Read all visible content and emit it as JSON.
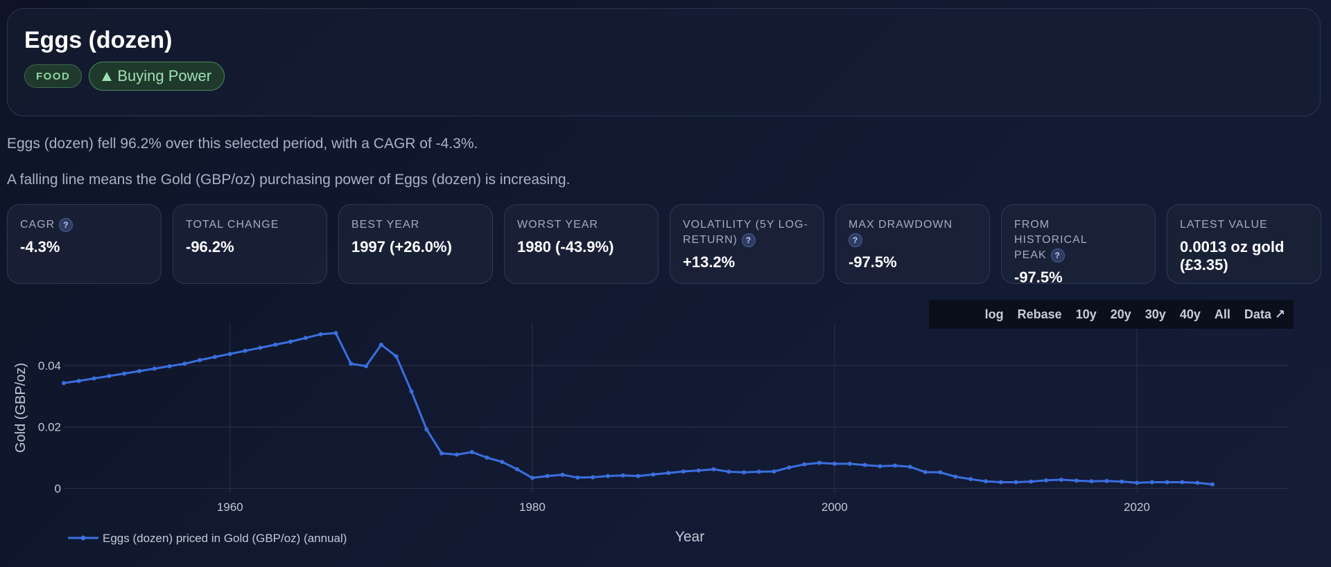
{
  "header": {
    "title": "Eggs (dozen)",
    "category_badge": "FOOD",
    "power_badge": "Buying Power"
  },
  "summary": {
    "line1": "Eggs (dozen) fell 96.2% over this selected period, with a CAGR of -4.3%.",
    "line2": "A falling line means the Gold (GBP/oz) purchasing power of Eggs (dozen) is increasing."
  },
  "stats": [
    {
      "label": "CAGR",
      "value": "-4.3%",
      "help": "?"
    },
    {
      "label": "TOTAL CHANGE",
      "value": "-96.2%"
    },
    {
      "label": "BEST YEAR",
      "value": "1997 (+26.0%)"
    },
    {
      "label": "WORST YEAR",
      "value": "1980 (-43.9%)"
    },
    {
      "label": "VOLATILITY (5Y LOG-RETURN)",
      "value": "+13.2%",
      "help": "?"
    },
    {
      "label": "MAX DRAWDOWN",
      "value": "-97.5%",
      "help": "?"
    },
    {
      "label": "FROM HISTORICAL PEAK",
      "value": "-97.5%",
      "help": "?"
    },
    {
      "label": "LATEST VALUE",
      "value": "0.0013 oz gold (£3.35)"
    }
  ],
  "toolbar": {
    "log": "log",
    "rebase": "Rebase",
    "y10": "10y",
    "y20": "20y",
    "y30": "30y",
    "y40": "40y",
    "all": "All",
    "data": "Data ↗"
  },
  "colors": {
    "line": "#3b6fe0",
    "grid": "#2b3349",
    "axis_text": "#c3c9d6"
  },
  "chart_data": {
    "type": "line",
    "xlabel": "Year",
    "ylabel": "Gold (GBP/oz)",
    "xlim": [
      1949,
      2030
    ],
    "ylim": [
      -0.0015,
      0.054
    ],
    "x_ticks": [
      1960,
      1980,
      2000,
      2020
    ],
    "y_ticks": [
      0,
      0.02,
      0.04
    ],
    "y_tick_labels": [
      "0",
      "0.02",
      "0.04"
    ],
    "grid": true,
    "legend": "bottom-left",
    "series": [
      {
        "name": "Eggs (dozen) priced in Gold (GBP/oz) (annual)",
        "x": [
          1949,
          1950,
          1951,
          1952,
          1953,
          1954,
          1955,
          1956,
          1957,
          1958,
          1959,
          1960,
          1961,
          1962,
          1963,
          1964,
          1965,
          1966,
          1967,
          1968,
          1969,
          1970,
          1971,
          1972,
          1973,
          1974,
          1975,
          1976,
          1977,
          1978,
          1979,
          1980,
          1981,
          1982,
          1983,
          1984,
          1985,
          1986,
          1987,
          1988,
          1989,
          1990,
          1991,
          1992,
          1993,
          1994,
          1995,
          1996,
          1997,
          1998,
          1999,
          2000,
          2001,
          2002,
          2003,
          2004,
          2005,
          2006,
          2007,
          2008,
          2009,
          2010,
          2011,
          2012,
          2013,
          2014,
          2015,
          2016,
          2017,
          2018,
          2019,
          2020,
          2021,
          2022,
          2023,
          2024,
          2025
        ],
        "values": [
          0.0343,
          0.035,
          0.0358,
          0.0366,
          0.0374,
          0.0382,
          0.039,
          0.0398,
          0.0406,
          0.0418,
          0.0428,
          0.0438,
          0.0448,
          0.0458,
          0.0468,
          0.0478,
          0.049,
          0.0502,
          0.0506,
          0.0406,
          0.0398,
          0.0468,
          0.043,
          0.0316,
          0.0192,
          0.0114,
          0.011,
          0.0118,
          0.01,
          0.0086,
          0.0062,
          0.0034,
          0.004,
          0.0044,
          0.0035,
          0.0036,
          0.004,
          0.0042,
          0.004,
          0.0045,
          0.005,
          0.0055,
          0.0058,
          0.0062,
          0.0054,
          0.0052,
          0.0054,
          0.0055,
          0.0068,
          0.0078,
          0.0083,
          0.008,
          0.008,
          0.0076,
          0.0072,
          0.0074,
          0.007,
          0.0053,
          0.0052,
          0.0038,
          0.003,
          0.0023,
          0.002,
          0.002,
          0.0022,
          0.0026,
          0.0028,
          0.0025,
          0.0023,
          0.0024,
          0.0022,
          0.0018,
          0.002,
          0.002,
          0.002,
          0.0018,
          0.0013
        ]
      }
    ]
  }
}
